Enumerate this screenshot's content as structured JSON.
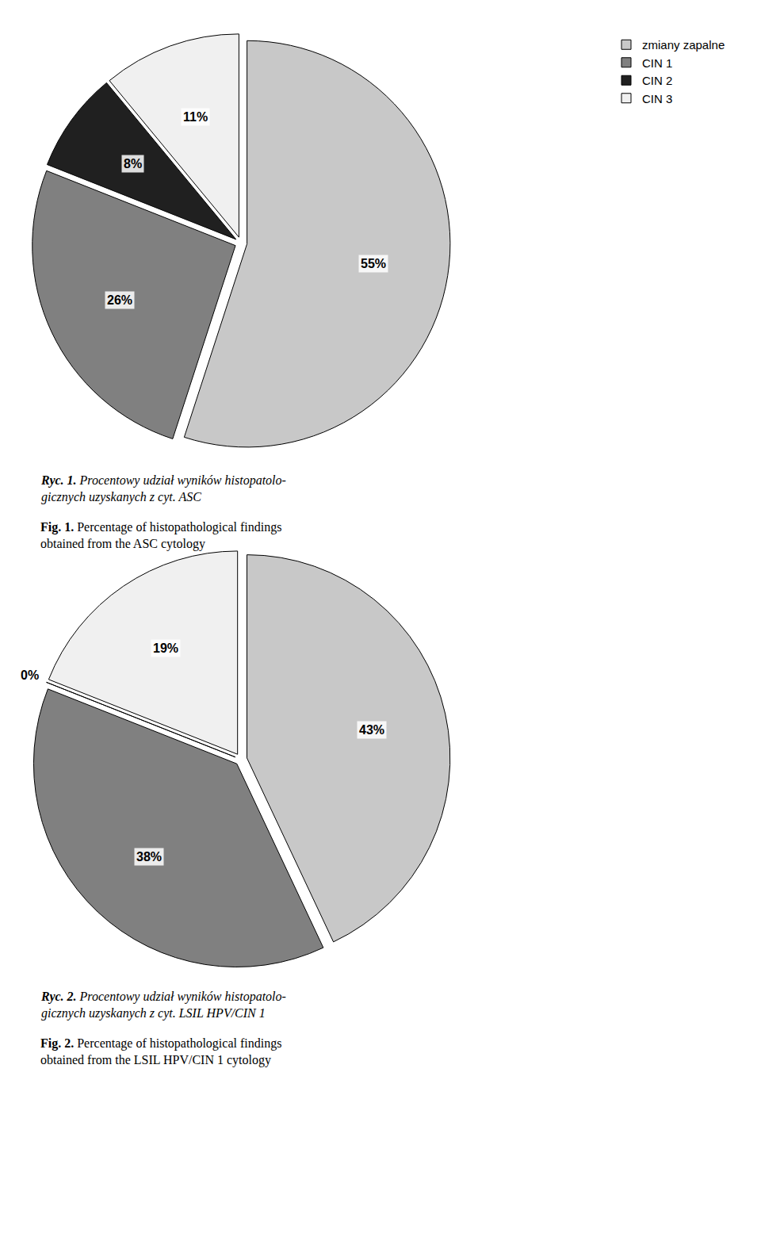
{
  "chart_data": [
    {
      "type": "pie",
      "categories": [
        "zmiany zapalne",
        "CIN 1",
        "CIN 2",
        "CIN 3"
      ],
      "values": [
        55,
        26,
        8,
        11
      ],
      "value_labels": [
        "55%",
        "26%",
        "8%",
        "11%"
      ],
      "data_labels": true,
      "colors": [
        "#c8c8c8",
        "#808080",
        "#202020",
        "#f0f0f0"
      ],
      "legend": "upper right",
      "annotations": [
        "Ryc. 1.",
        "Procentowy udział wyników histopatolo-\ngicznych uzyskanych z cyt. ASC",
        "Fig. 1.",
        "Percentage of histopathological findings\nobtained from the ASC cytology"
      ]
    },
    {
      "type": "pie",
      "categories": [
        "zmiany zapalne",
        "CIN 1",
        "CIN 2",
        "CIN 3"
      ],
      "values": [
        43,
        38,
        0,
        19
      ],
      "value_labels": [
        "43%",
        "38%",
        "0%",
        "19%"
      ],
      "data_labels": true,
      "colors": [
        "#c8c8c8",
        "#808080",
        "#202020",
        "#f0f0f0"
      ],
      "legend": "upper right",
      "annotations": [
        "Ryc. 2.",
        "Procentowy udział wyników histopatolo-\ngicznych uzyskanych z cyt. LSIL HPV/CIN 1",
        "Fig. 2.",
        "Percentage of histopathological findings\nobtained from the LSIL HPV/CIN 1 cytology"
      ]
    }
  ]
}
